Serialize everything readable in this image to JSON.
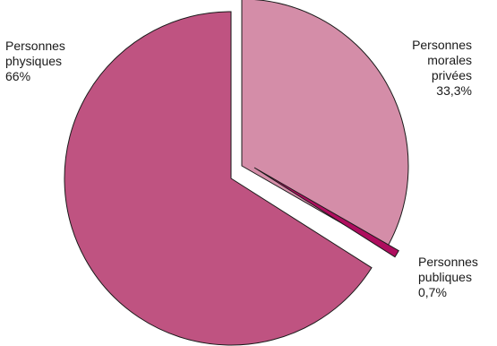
{
  "chart_data": {
    "type": "pie",
    "slices": [
      {
        "label": [
          "Personnes",
          "physiques"
        ],
        "value": 66,
        "value_label": "66%",
        "color": "#bf5381"
      },
      {
        "label": [
          "Personnes",
          "morales",
          "privées"
        ],
        "value": 33.3,
        "value_label": "33,3%",
        "color": "#d48da8"
      },
      {
        "label": [
          "Personnes",
          "publiques"
        ],
        "value": 0.7,
        "value_label": "0,7%",
        "color": "#ae0d5e"
      }
    ],
    "legend": "none",
    "exploded": true
  }
}
